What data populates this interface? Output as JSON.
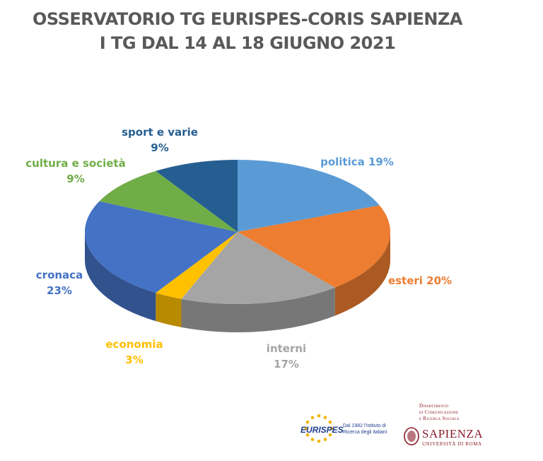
{
  "header": {
    "title_line1": "OSSERVATORIO TG EURISPES-CORIS SAPIENZA",
    "title_line2": "I TG DAL 14 AL 18 GIUGNO 2021"
  },
  "chart_data": {
    "type": "pie",
    "title": "OSSERVATORIO TG EURISPES-CORIS SAPIENZA I TG DAL 14 AL 18 GIUGNO 2021",
    "style": "3d-pie",
    "slices": [
      {
        "name": "politica",
        "value": 19,
        "label": "politica 19%",
        "color": "#5b9bd5"
      },
      {
        "name": "esteri",
        "value": 20,
        "label": "esteri 20%",
        "color": "#ed7d31"
      },
      {
        "name": "interni",
        "value": 17,
        "label": [
          "interni",
          "17%"
        ],
        "color": "#a5a5a5"
      },
      {
        "name": "economia",
        "value": 3,
        "label": [
          "economia",
          "3%"
        ],
        "color": "#ffc000"
      },
      {
        "name": "cronaca",
        "value": 23,
        "label": [
          "cronaca",
          "23%"
        ],
        "color": "#4472c4"
      },
      {
        "name": "cultura e società",
        "value": 9,
        "label": [
          "cultura e società",
          "9%"
        ],
        "color": "#70ad47"
      },
      {
        "name": "sport e varie",
        "value": 9,
        "label": [
          "sport e varie",
          "9%"
        ],
        "color": "#255e91"
      }
    ]
  },
  "logos": {
    "eurispes_word": "EURISPES",
    "eurispes_tagline": "Dal 1982 l'Istituto di Ricerca degli italiani",
    "dept_line1": "Dipartimento",
    "dept_line2": "di Comunicazione",
    "dept_line3": "e Ricerca Sociale",
    "sapienza_name": "SAPIENZA",
    "sapienza_sub": "UNIVERSITÀ DI ROMA"
  }
}
